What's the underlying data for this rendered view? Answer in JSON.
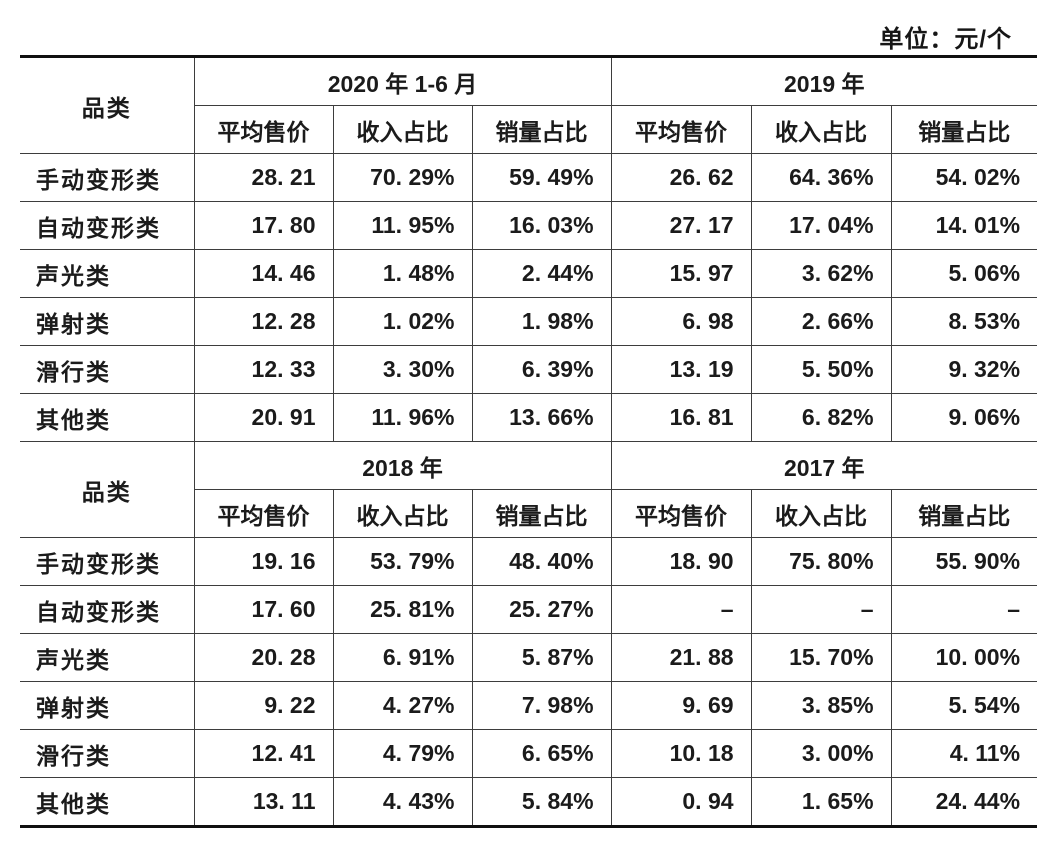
{
  "unit_label": "单位：元/个",
  "table": {
    "category_header": "品类",
    "sub_headers": [
      "平均售价",
      "收入占比",
      "销量占比"
    ],
    "sections": [
      {
        "periods": [
          "2020 年 1-6 月",
          "2019 年"
        ],
        "rows": [
          {
            "category": "手动变形类",
            "values": [
              "28. 21",
              "70. 29%",
              "59. 49%",
              "26. 62",
              "64. 36%",
              "54. 02%"
            ]
          },
          {
            "category": "自动变形类",
            "values": [
              "17. 80",
              "11. 95%",
              "16. 03%",
              "27. 17",
              "17. 04%",
              "14. 01%"
            ]
          },
          {
            "category": "声光类",
            "values": [
              "14. 46",
              "1. 48%",
              "2. 44%",
              "15. 97",
              "3. 62%",
              "5. 06%"
            ]
          },
          {
            "category": "弹射类",
            "values": [
              "12. 28",
              "1. 02%",
              "1. 98%",
              "6. 98",
              "2. 66%",
              "8. 53%"
            ]
          },
          {
            "category": "滑行类",
            "values": [
              "12. 33",
              "3. 30%",
              "6. 39%",
              "13. 19",
              "5. 50%",
              "9. 32%"
            ]
          },
          {
            "category": "其他类",
            "values": [
              "20. 91",
              "11. 96%",
              "13. 66%",
              "16. 81",
              "6. 82%",
              "9. 06%"
            ]
          }
        ]
      },
      {
        "periods": [
          "2018 年",
          "2017 年"
        ],
        "rows": [
          {
            "category": "手动变形类",
            "values": [
              "19. 16",
              "53. 79%",
              "48. 40%",
              "18. 90",
              "75. 80%",
              "55. 90%"
            ]
          },
          {
            "category": "自动变形类",
            "values": [
              "17. 60",
              "25. 81%",
              "25. 27%",
              "–",
              "–",
              "–"
            ]
          },
          {
            "category": "声光类",
            "values": [
              "20. 28",
              "6. 91%",
              "5. 87%",
              "21. 88",
              "15. 70%",
              "10. 00%"
            ]
          },
          {
            "category": "弹射类",
            "values": [
              "9. 22",
              "4. 27%",
              "7. 98%",
              "9. 69",
              "3. 85%",
              "5. 54%"
            ]
          },
          {
            "category": "滑行类",
            "values": [
              "12. 41",
              "4. 79%",
              "6. 65%",
              "10. 18",
              "3. 00%",
              "4. 11%"
            ]
          },
          {
            "category": "其他类",
            "values": [
              "13. 11",
              "4. 43%",
              "5. 84%",
              "0. 94",
              "1. 65%",
              "24. 44%"
            ]
          }
        ]
      }
    ]
  }
}
